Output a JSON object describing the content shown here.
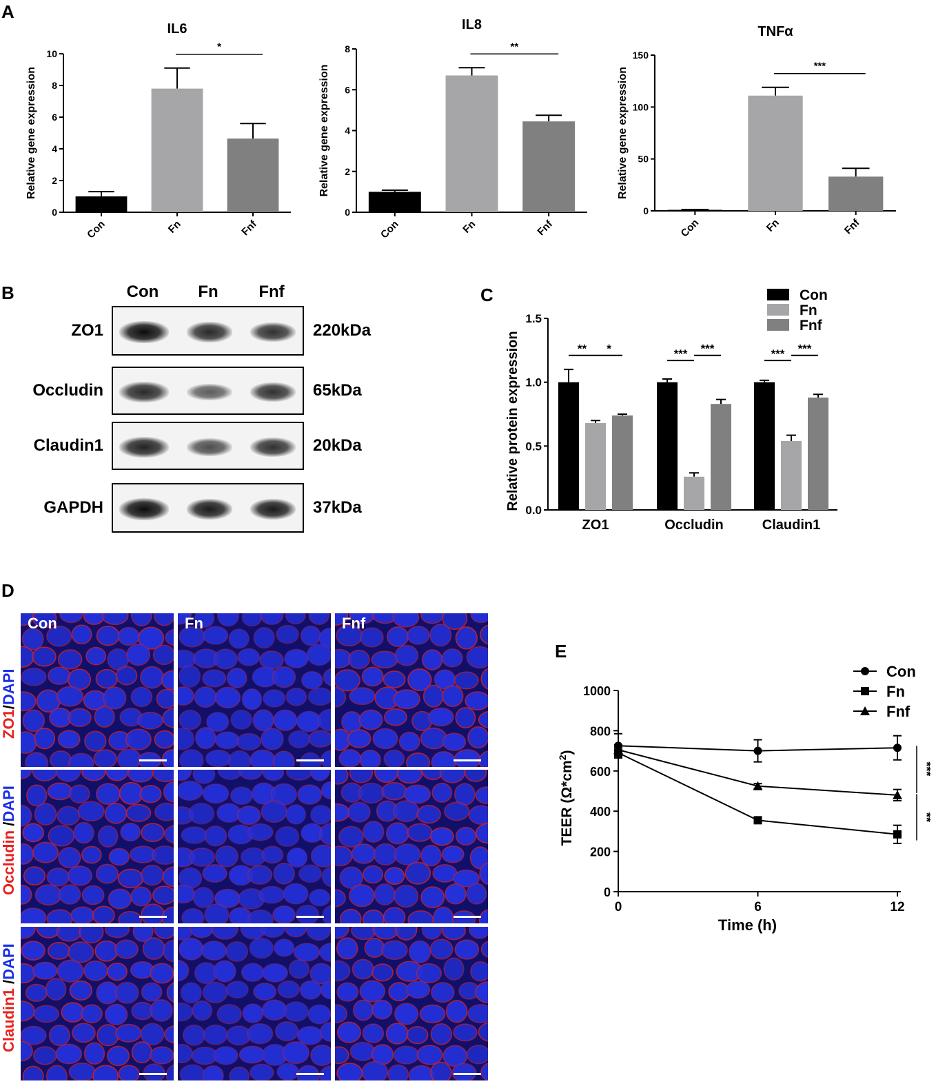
{
  "panels": {
    "A": "A",
    "B": "B",
    "C": "C",
    "D": "D",
    "E": "E"
  },
  "chart_data": [
    {
      "type": "bar",
      "title": "IL6",
      "ylabel": "Relative gene expression",
      "categories": [
        "Con",
        "Fn",
        "Fnf"
      ],
      "values": [
        1.0,
        7.8,
        4.65
      ],
      "errors": [
        0.3,
        1.3,
        0.95
      ],
      "ylim": [
        0,
        10
      ],
      "yticks": [
        0,
        2,
        4,
        6,
        8,
        10
      ],
      "colors": [
        "#000000",
        "#a6a6a9",
        "#808080"
      ],
      "significance": [
        {
          "between": [
            "Fn",
            "Fnf"
          ],
          "label": "*"
        }
      ]
    },
    {
      "type": "bar",
      "title": "IL8",
      "ylabel": "Relative gene expression",
      "categories": [
        "Con",
        "Fn",
        "Fnf"
      ],
      "values": [
        1.0,
        6.7,
        4.45
      ],
      "errors": [
        0.08,
        0.38,
        0.3
      ],
      "ylim": [
        0,
        8
      ],
      "yticks": [
        0,
        2,
        4,
        6,
        8
      ],
      "colors": [
        "#000000",
        "#a6a6a9",
        "#808080"
      ],
      "significance": [
        {
          "between": [
            "Fn",
            "Fnf"
          ],
          "label": "**"
        }
      ]
    },
    {
      "type": "bar",
      "title": "TNFα",
      "ylabel": "Relative gene expression",
      "categories": [
        "Con",
        "Fn",
        "Fnf"
      ],
      "values": [
        1.0,
        111,
        33
      ],
      "errors": [
        0.3,
        8,
        8
      ],
      "ylim": [
        0,
        150
      ],
      "yticks": [
        0,
        50,
        100,
        150
      ],
      "colors": [
        "#000000",
        "#a6a6a9",
        "#808080"
      ],
      "significance": [
        {
          "between": [
            "Fn",
            "Fnf"
          ],
          "label": "***"
        }
      ]
    },
    {
      "type": "bar",
      "ylabel": "Relative protein expression",
      "categories": [
        "ZO1",
        "Occludin",
        "Claudin1"
      ],
      "series": [
        {
          "name": "Con",
          "values": [
            1.0,
            1.0,
            1.0
          ],
          "errors": [
            0.1,
            0.025,
            0.015
          ],
          "color": "#000000"
        },
        {
          "name": "Fn",
          "values": [
            0.68,
            0.26,
            0.54
          ],
          "errors": [
            0.02,
            0.03,
            0.045
          ],
          "color": "#a6a6a9"
        },
        {
          "name": "Fnf",
          "values": [
            0.74,
            0.83,
            0.88
          ],
          "errors": [
            0.01,
            0.035,
            0.025
          ],
          "color": "#808080"
        }
      ],
      "ylim": [
        0,
        1.5
      ],
      "yticks": [
        "0.0",
        "0.5",
        "1.0",
        "1.5"
      ],
      "legend": "top-right",
      "significance": [
        {
          "category": "ZO1",
          "pair": [
            "Con",
            "Fn"
          ],
          "label": "**"
        },
        {
          "category": "ZO1",
          "pair": [
            "Fn",
            "Fnf"
          ],
          "label": "*"
        },
        {
          "category": "Occludin",
          "pair": [
            "Con",
            "Fn"
          ],
          "label": "***"
        },
        {
          "category": "Occludin",
          "pair": [
            "Fn",
            "Fnf"
          ],
          "label": "***"
        },
        {
          "category": "Claudin1",
          "pair": [
            "Con",
            "Fn"
          ],
          "label": "***"
        },
        {
          "category": "Claudin1",
          "pair": [
            "Fn",
            "Fnf"
          ],
          "label": "***"
        }
      ]
    },
    {
      "type": "line",
      "xlabel": "Time (h)",
      "ylabel": "TEER (Ω*cm",
      "ylabel_sup": "2",
      "ylabel_close": ")",
      "x": [
        0,
        6,
        12
      ],
      "xticks": [
        0,
        6,
        12
      ],
      "ylim": [
        0,
        1000
      ],
      "yticks": [
        0,
        200,
        400,
        600,
        800,
        1000
      ],
      "series": [
        {
          "name": "Con",
          "marker": "circle",
          "values": [
            725,
            700,
            715
          ],
          "errors": [
            60,
            55,
            60
          ]
        },
        {
          "name": "Fn",
          "marker": "square",
          "values": [
            690,
            355,
            285
          ],
          "errors": [
            25,
            15,
            45
          ]
        },
        {
          "name": "Fnf",
          "marker": "triangle",
          "values": [
            705,
            525,
            480
          ],
          "errors": [
            25,
            12,
            28
          ]
        }
      ],
      "legend": "top-right",
      "significance": [
        {
          "between": [
            "Con",
            "Fnf"
          ],
          "label": "***"
        },
        {
          "between": [
            "Fnf",
            "Fn"
          ],
          "label": "**"
        }
      ]
    }
  ],
  "western_blot": {
    "lanes": [
      "Con",
      "Fn",
      "Fnf"
    ],
    "rows": [
      {
        "protein": "ZO1",
        "size": "220kDa",
        "intensity": [
          1.0,
          0.8,
          0.75
        ]
      },
      {
        "protein": "Occludin",
        "size": "65kDa",
        "intensity": [
          0.8,
          0.45,
          0.75
        ]
      },
      {
        "protein": "Claudin1",
        "size": "20kDa",
        "intensity": [
          0.85,
          0.55,
          0.75
        ]
      },
      {
        "protein": "GAPDH",
        "size": "37kDa",
        "intensity": [
          1.0,
          0.9,
          0.9
        ]
      }
    ]
  },
  "immunofluorescence": {
    "columns": [
      "Con",
      "Fn",
      "Fnf"
    ],
    "rows": [
      {
        "stain": "ZO1",
        "sep": "/",
        "counter": "DAPI"
      },
      {
        "stain": "Occludin",
        "sep": " /",
        "counter": "DAPI"
      },
      {
        "stain": "Claudin1",
        "sep": " /",
        "counter": "DAPI"
      }
    ]
  },
  "colors": {
    "stain": "#e8201e",
    "dapi": "#1a2ee6"
  }
}
